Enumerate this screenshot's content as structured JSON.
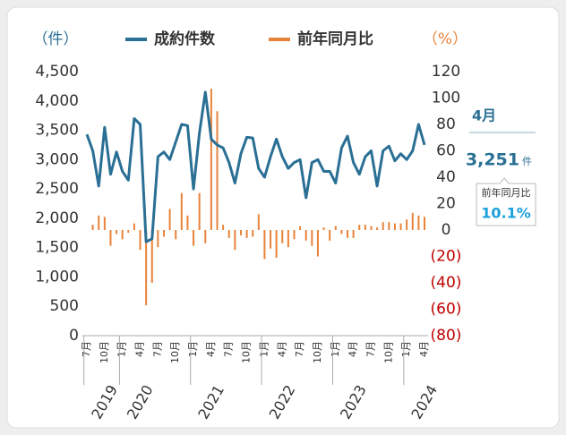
{
  "chart_data": {
    "type": "line_bar",
    "left_axis_title": "（件）",
    "right_axis_title": "（%）",
    "categories": [
      "7月",
      null,
      null,
      "10月",
      null,
      null,
      "1月",
      null,
      null,
      "4月",
      null,
      null,
      "7月",
      null,
      null,
      "10月",
      null,
      null,
      "1月",
      null,
      null,
      "4月",
      null,
      null,
      "7月",
      null,
      null,
      "10月",
      null,
      null,
      "1月",
      null,
      null,
      "4月",
      null,
      null,
      "7月",
      null,
      null,
      "10月",
      null,
      null,
      "1月",
      null,
      null,
      "4月",
      null,
      null,
      "7月",
      null,
      null,
      "10月",
      null,
      null,
      "1月",
      null,
      null,
      "4月"
    ],
    "years": [
      {
        "label": "2019",
        "index": 0
      },
      {
        "label": "2020",
        "index": 6
      },
      {
        "label": "2021",
        "index": 18
      },
      {
        "label": "2022",
        "index": 30
      },
      {
        "label": "2023",
        "index": 42
      },
      {
        "label": "2024",
        "index": 54
      }
    ],
    "series": [
      {
        "name": "成約件数",
        "color": "#2a6f94",
        "kind": "line",
        "values": [
          3430,
          3150,
          2550,
          3550,
          2750,
          3130,
          2800,
          2650,
          3700,
          3600,
          1600,
          1650,
          3050,
          3130,
          3000,
          3300,
          3600,
          3580,
          2500,
          3450,
          4150,
          3350,
          3250,
          3200,
          2950,
          2600,
          3100,
          3380,
          3370,
          2850,
          2700,
          3050,
          3350,
          3050,
          2850,
          2950,
          3000,
          2350,
          2950,
          3000,
          2800,
          2800,
          2600,
          3200,
          3400,
          2950,
          2750,
          3050,
          3150,
          2550,
          3150,
          3230,
          2980,
          3100,
          3000,
          3150,
          3600,
          3251
        ]
      },
      {
        "name": "前年同月比",
        "color": "#e8833a",
        "kind": "bar",
        "axis": "y2",
        "values": [
          0,
          4,
          11,
          10,
          -12,
          -3,
          -7,
          -2,
          5,
          -15,
          -57,
          -40,
          -13,
          -5,
          16,
          -7,
          28,
          11,
          -12,
          28,
          -10,
          107,
          90,
          4,
          -6,
          -15,
          -4,
          -6,
          -5,
          12,
          -22,
          -14,
          -21,
          -10,
          -13,
          -7,
          3,
          -8,
          -12,
          -20,
          2,
          -8,
          3,
          -3,
          -6,
          -6,
          4,
          4,
          3,
          2,
          6,
          6,
          5,
          5,
          8,
          13,
          11,
          10.1
        ]
      }
    ],
    "ylim": [
      0,
      4500
    ],
    "yticks": [
      0,
      500,
      {
        "value": 1000,
        "label": "1,000"
      },
      {
        "value": 1500,
        "label": "1,500"
      },
      {
        "value": 2000,
        "label": "2,000"
      },
      {
        "value": 2500,
        "label": "2,500"
      },
      {
        "value": 3000,
        "label": "3,000"
      },
      {
        "value": 3500,
        "label": "3,500"
      },
      {
        "value": 4000,
        "label": "4,000"
      },
      {
        "value": 4500,
        "label": "4,500"
      }
    ],
    "y2lim": [
      -80,
      120
    ],
    "y2ticks": [
      120,
      100,
      80,
      60,
      40,
      20,
      0,
      {
        "value": -20,
        "label": "(20)"
      },
      {
        "value": -40,
        "label": "(40)"
      },
      {
        "value": -60,
        "label": "(60)"
      },
      {
        "value": -80,
        "label": "(80)"
      }
    ],
    "callout": {
      "month": "4月",
      "count_label": "3,251",
      "unit": "件",
      "yoy_title": "前年同月比",
      "yoy_label": "10.1%"
    }
  }
}
